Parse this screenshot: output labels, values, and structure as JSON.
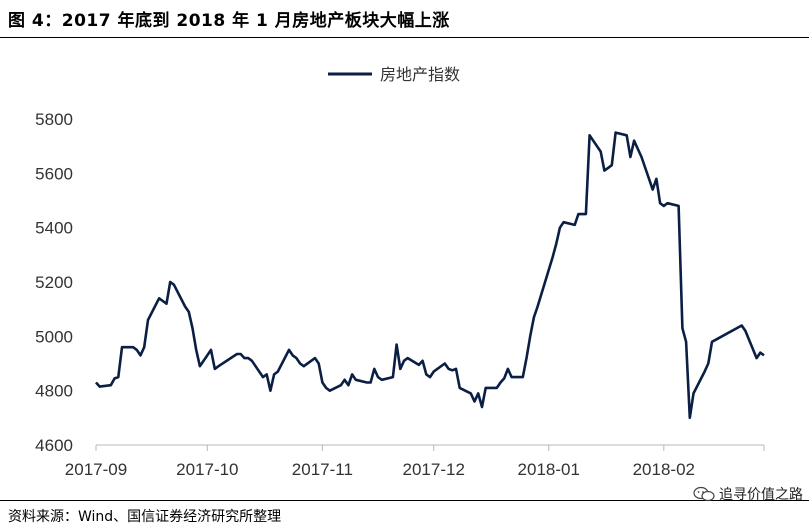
{
  "figure": {
    "title": "图 4：2017 年底到 2018 年 1 月房地产板块大幅上涨",
    "source": "资料来源：Wind、国信证券经济研究所整理",
    "watermark": "追寻价值之路",
    "watermark_icon": "wechat-icon"
  },
  "chart_data": {
    "type": "line",
    "title": "",
    "xlabel": "",
    "ylabel": "",
    "ylim": [
      4600,
      5800
    ],
    "yticks": [
      4600,
      4800,
      5000,
      5200,
      5400,
      5600,
      5800
    ],
    "xlim": [
      "2017-09-01",
      "2018-02-28"
    ],
    "xticks": [
      "2017-09",
      "2017-10",
      "2017-11",
      "2017-12",
      "2018-01",
      "2018-02"
    ],
    "legend": "top-center",
    "grid": false,
    "series": [
      {
        "name": "房地产指数",
        "color": "#0b1f45",
        "x": [
          "2017-09-01",
          "2017-09-02",
          "2017-09-05",
          "2017-09-06",
          "2017-09-07",
          "2017-09-08",
          "2017-09-11",
          "2017-09-12",
          "2017-09-13",
          "2017-09-14",
          "2017-09-15",
          "2017-09-18",
          "2017-09-19",
          "2017-09-20",
          "2017-09-21",
          "2017-09-22",
          "2017-09-25",
          "2017-09-26",
          "2017-09-27",
          "2017-09-28",
          "2017-09-29",
          "2017-10-02",
          "2017-10-03",
          "2017-10-04",
          "2017-10-09",
          "2017-10-10",
          "2017-10-11",
          "2017-10-12",
          "2017-10-13",
          "2017-10-16",
          "2017-10-17",
          "2017-10-18",
          "2017-10-19",
          "2017-10-20",
          "2017-10-23",
          "2017-10-24",
          "2017-10-25",
          "2017-10-26",
          "2017-10-27",
          "2017-10-30",
          "2017-10-31",
          "2017-11-01",
          "2017-11-02",
          "2017-11-03",
          "2017-11-06",
          "2017-11-07",
          "2017-11-08",
          "2017-11-09",
          "2017-11-10",
          "2017-11-13",
          "2017-11-14",
          "2017-11-15",
          "2017-11-16",
          "2017-11-17",
          "2017-11-20",
          "2017-11-21",
          "2017-11-22",
          "2017-11-23",
          "2017-11-24",
          "2017-11-27",
          "2017-11-28",
          "2017-11-29",
          "2017-11-30",
          "2017-12-01",
          "2017-12-04",
          "2017-12-05",
          "2017-12-06",
          "2017-12-07",
          "2017-12-08",
          "2017-12-11",
          "2017-12-12",
          "2017-12-13",
          "2017-12-14",
          "2017-12-15",
          "2017-12-18",
          "2017-12-19",
          "2017-12-20",
          "2017-12-21",
          "2017-12-22",
          "2017-12-25",
          "2017-12-26",
          "2017-12-27",
          "2017-12-28",
          "2017-12-29",
          "2018-01-02",
          "2018-01-03",
          "2018-01-04",
          "2018-01-05",
          "2018-01-08",
          "2018-01-09",
          "2018-01-10",
          "2018-01-11",
          "2018-01-12",
          "2018-01-15",
          "2018-01-16",
          "2018-01-17",
          "2018-01-18",
          "2018-01-19",
          "2018-01-22",
          "2018-01-23",
          "2018-01-24",
          "2018-01-25",
          "2018-01-26",
          "2018-01-29",
          "2018-01-30",
          "2018-01-31",
          "2018-02-01",
          "2018-02-02",
          "2018-02-05",
          "2018-02-06",
          "2018-02-07",
          "2018-02-08",
          "2018-02-09",
          "2018-02-12",
          "2018-02-13",
          "2018-02-14",
          "2018-02-22",
          "2018-02-23",
          "2018-02-26",
          "2018-02-27",
          "2018-02-28"
        ],
        "y": [
          4830,
          4815,
          4820,
          4845,
          4850,
          4960,
          4960,
          4950,
          4930,
          4960,
          5060,
          5140,
          5130,
          5120,
          5200,
          5190,
          5110,
          5090,
          5030,
          4950,
          4890,
          4950,
          4880,
          4890,
          4935,
          4935,
          4920,
          4920,
          4910,
          4850,
          4860,
          4800,
          4860,
          4870,
          4950,
          4930,
          4920,
          4900,
          4890,
          4920,
          4900,
          4830,
          4810,
          4800,
          4820,
          4840,
          4820,
          4860,
          4840,
          4830,
          4830,
          4880,
          4850,
          4840,
          4850,
          4970,
          4880,
          4910,
          4920,
          4895,
          4910,
          4860,
          4850,
          4870,
          4900,
          4880,
          4875,
          4880,
          4810,
          4790,
          4760,
          4790,
          4740,
          4810,
          4810,
          4830,
          4845,
          4880,
          4850,
          4850,
          4920,
          5000,
          5070,
          5110,
          5290,
          5340,
          5400,
          5420,
          5410,
          5450,
          5450,
          5450,
          5740,
          5680,
          5610,
          5620,
          5630,
          5750,
          5740,
          5660,
          5720,
          5690,
          5660,
          5540,
          5580,
          5490,
          5480,
          5490,
          5480,
          5030,
          4980,
          4700,
          4790,
          4870,
          4900,
          4980,
          5040,
          5020,
          4920,
          4940,
          4930
        ]
      }
    ]
  }
}
